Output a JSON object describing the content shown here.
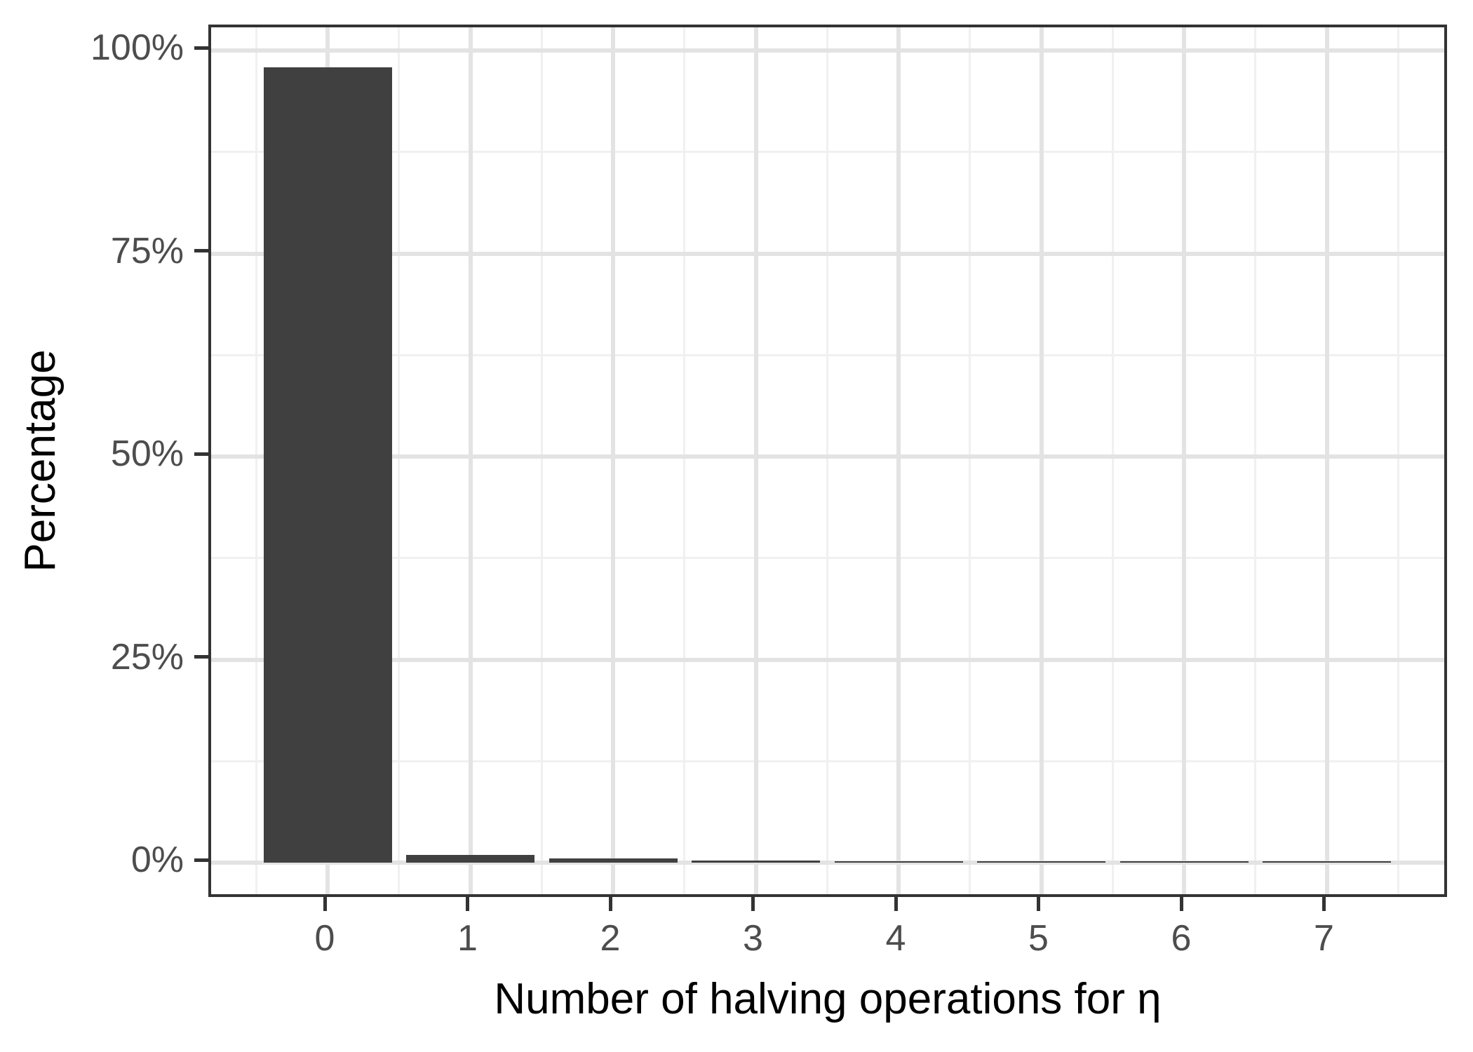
{
  "chart_data": {
    "type": "bar",
    "title": "",
    "xlabel": "Number of halving operations for η",
    "ylabel": "Percentage",
    "categories": [
      "0",
      "1",
      "2",
      "3",
      "4",
      "5",
      "6",
      "7"
    ],
    "values": [
      97.9,
      0.95,
      0.5,
      0.3,
      0.2,
      0.15,
      0.1,
      0.08
    ],
    "y_tick_labels": [
      "0%",
      "25%",
      "50%",
      "75%",
      "100%"
    ],
    "y_tick_values": [
      0,
      25,
      50,
      75,
      100
    ],
    "ylim": [
      0,
      100
    ],
    "grid": "on",
    "legend": "none",
    "colors": {
      "bar": "#404040",
      "panel_border": "#333333",
      "grid_major": "#E3E3E3",
      "grid_minor": "#F0F0F0",
      "tick_mark": "#333333",
      "tick_label": "#4D4D4D",
      "axis_title": "#000000",
      "background": "#FFFFFF"
    }
  }
}
